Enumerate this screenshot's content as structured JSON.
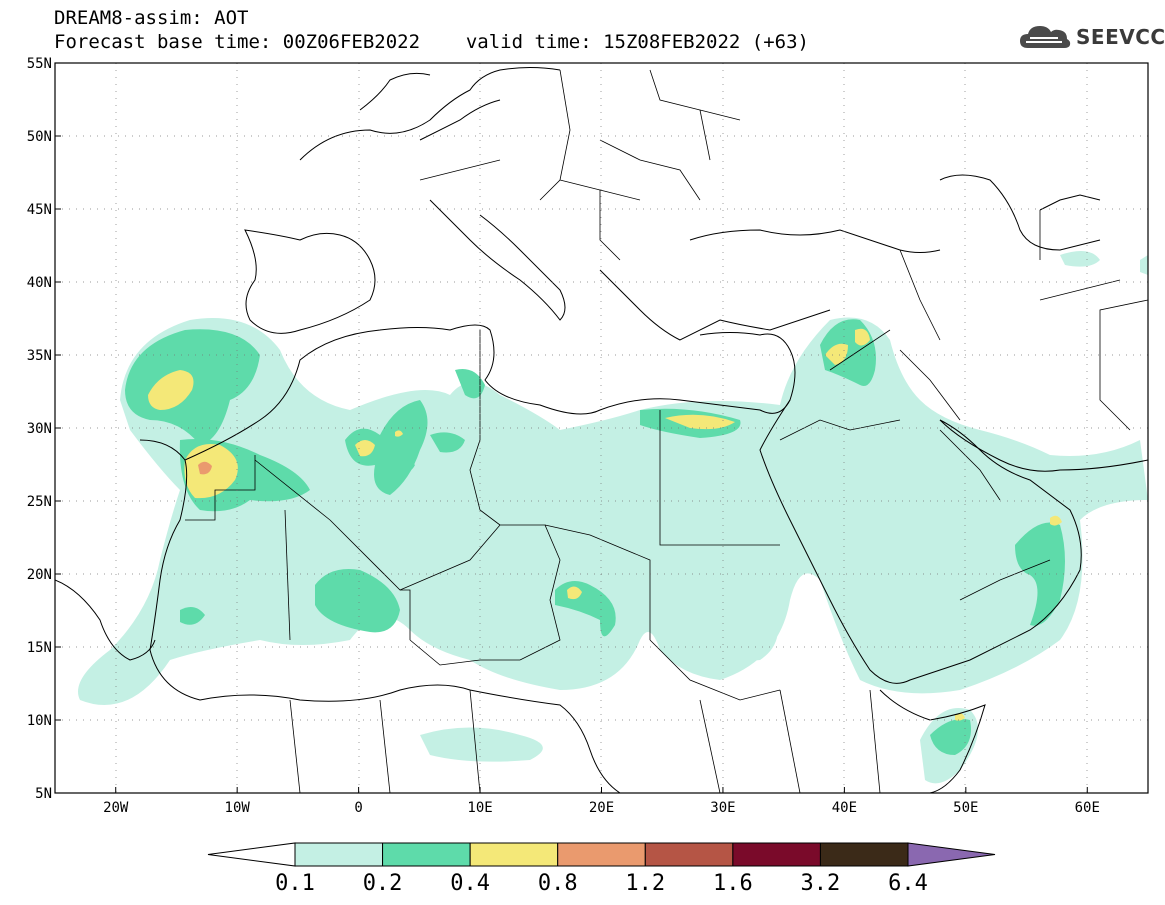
{
  "header": {
    "title": "DREAM8-assim: AOT",
    "base_time_label": "Forecast base time: 00Z06FEB2022",
    "valid_time_label": "valid time: 15Z08FEB2022 (+63)"
  },
  "logo": {
    "text": "SEEVCCC",
    "icon": "cloud-icon"
  },
  "map": {
    "lon_range": [
      -25,
      65
    ],
    "lat_range": [
      5,
      55
    ],
    "lat_ticks": [
      "55N",
      "50N",
      "45N",
      "40N",
      "35N",
      "30N",
      "25N",
      "20N",
      "15N",
      "10N",
      "5N"
    ],
    "lat_values": [
      55,
      50,
      45,
      40,
      35,
      30,
      25,
      20,
      15,
      10,
      5
    ],
    "lon_ticks": [
      "20W",
      "10W",
      "0",
      "10E",
      "20E",
      "30E",
      "40E",
      "50E",
      "60E"
    ],
    "lon_values": [
      -20,
      -10,
      0,
      10,
      20,
      30,
      40,
      50,
      60
    ],
    "grid": true
  },
  "legend": {
    "labels": [
      "0.1",
      "0.2",
      "0.4",
      "0.8",
      "1.2",
      "1.6",
      "3.2",
      "6.4"
    ],
    "colors": [
      "#ffffff",
      "#c4f0e4",
      "#5edbaa",
      "#f4e878",
      "#ea9a6e",
      "#b55545",
      "#7a0a2a",
      "#3b2a18",
      "#8a68b0"
    ]
  }
}
